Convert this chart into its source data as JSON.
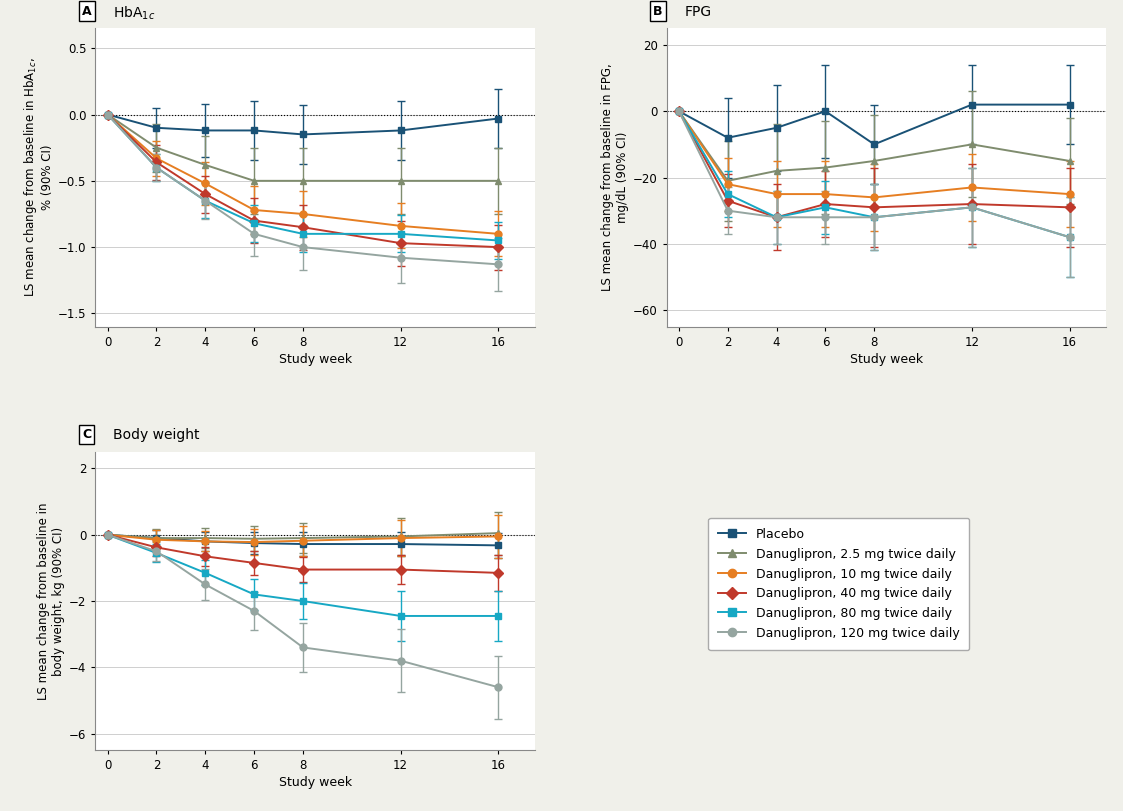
{
  "weeks": [
    0,
    2,
    4,
    6,
    8,
    12,
    16
  ],
  "hba1c": {
    "placebo": [
      0,
      -0.1,
      -0.12,
      -0.12,
      -0.15,
      -0.12,
      -0.03
    ],
    "d2p5": [
      0,
      -0.25,
      -0.38,
      -0.5,
      -0.5,
      -0.5,
      -0.5
    ],
    "d10": [
      0,
      -0.33,
      -0.52,
      -0.72,
      -0.75,
      -0.84,
      -0.9
    ],
    "d40": [
      0,
      -0.36,
      -0.6,
      -0.8,
      -0.85,
      -0.97,
      -1.0
    ],
    "d80": [
      0,
      -0.4,
      -0.65,
      -0.82,
      -0.9,
      -0.9,
      -0.95
    ],
    "d120": [
      0,
      -0.4,
      -0.65,
      -0.9,
      -1.0,
      -1.08,
      -1.13
    ]
  },
  "hba1c_err": {
    "placebo": [
      0,
      0.15,
      0.2,
      0.22,
      0.22,
      0.22,
      0.22
    ],
    "d2p5": [
      0,
      0.18,
      0.22,
      0.25,
      0.25,
      0.25,
      0.25
    ],
    "d10": [
      0,
      0.13,
      0.16,
      0.18,
      0.17,
      0.17,
      0.17
    ],
    "d40": [
      0,
      0.13,
      0.14,
      0.17,
      0.17,
      0.17,
      0.17
    ],
    "d80": [
      0,
      0.1,
      0.13,
      0.14,
      0.14,
      0.14,
      0.14
    ],
    "d120": [
      0,
      0.1,
      0.14,
      0.17,
      0.17,
      0.19,
      0.2
    ]
  },
  "fpg": {
    "placebo": [
      0,
      -8,
      -5,
      0,
      -10,
      2,
      2
    ],
    "d2p5": [
      0,
      -21,
      -18,
      -17,
      -15,
      -10,
      -15
    ],
    "d10": [
      0,
      -22,
      -25,
      -25,
      -26,
      -23,
      -25
    ],
    "d40": [
      0,
      -27,
      -32,
      -28,
      -29,
      -28,
      -29
    ],
    "d80": [
      0,
      -25,
      -32,
      -29,
      -32,
      -29,
      -38
    ],
    "d120": [
      0,
      -30,
      -32,
      -32,
      -32,
      -29,
      -38
    ]
  },
  "fpg_err": {
    "placebo": [
      0,
      12,
      13,
      14,
      12,
      12,
      12
    ],
    "d2p5": [
      0,
      12,
      14,
      14,
      14,
      16,
      13
    ],
    "d10": [
      0,
      8,
      10,
      10,
      10,
      10,
      10
    ],
    "d40": [
      0,
      8,
      10,
      10,
      12,
      12,
      12
    ],
    "d80": [
      0,
      7,
      8,
      8,
      10,
      12,
      12
    ],
    "d120": [
      0,
      7,
      8,
      8,
      10,
      12,
      12
    ]
  },
  "bw": {
    "placebo": [
      0,
      -0.1,
      -0.2,
      -0.25,
      -0.28,
      -0.28,
      -0.32
    ],
    "d2p5": [
      0,
      -0.1,
      -0.1,
      -0.12,
      -0.1,
      -0.05,
      0.05
    ],
    "d10": [
      0,
      -0.15,
      -0.2,
      -0.22,
      -0.18,
      -0.1,
      -0.05
    ],
    "d40": [
      0,
      -0.38,
      -0.65,
      -0.85,
      -1.05,
      -1.05,
      -1.15
    ],
    "d80": [
      0,
      -0.55,
      -1.15,
      -1.8,
      -2.0,
      -2.45,
      -2.45
    ],
    "d120": [
      0,
      -0.5,
      -1.5,
      -2.3,
      -3.4,
      -3.8,
      -4.6
    ]
  },
  "bw_err": {
    "placebo": [
      0,
      0.25,
      0.28,
      0.32,
      0.35,
      0.35,
      0.38
    ],
    "d2p5": [
      0,
      0.28,
      0.3,
      0.38,
      0.45,
      0.55,
      0.65
    ],
    "d10": [
      0,
      0.28,
      0.3,
      0.38,
      0.45,
      0.55,
      0.65
    ],
    "d40": [
      0,
      0.25,
      0.28,
      0.35,
      0.38,
      0.45,
      0.55
    ],
    "d80": [
      0,
      0.28,
      0.38,
      0.48,
      0.55,
      0.75,
      0.75
    ],
    "d120": [
      0,
      0.28,
      0.48,
      0.58,
      0.75,
      0.95,
      0.95
    ]
  },
  "colors": {
    "placebo": "#1a5276",
    "d2p5": "#7f8c6e",
    "d10": "#e67e22",
    "d40": "#c0392b",
    "d80": "#17a8c4",
    "d120": "#95a5a0"
  },
  "markers": {
    "placebo": "s",
    "d2p5": "^",
    "d10": "o",
    "d40": "D",
    "d80": "s",
    "d120": "o"
  },
  "legend_labels": {
    "placebo": "Placebo",
    "d2p5": "Danuglipron, 2.5 mg twice daily",
    "d10": "Danuglipron, 10 mg twice daily",
    "d40": "Danuglipron, 40 mg twice daily",
    "d80": "Danuglipron, 80 mg twice daily",
    "d120": "Danuglipron, 120 mg twice daily"
  },
  "xlim": [
    -0.5,
    17.5
  ],
  "xticks": [
    0,
    2,
    4,
    6,
    8,
    12,
    16
  ],
  "ylim_A": [
    -1.6,
    0.65
  ],
  "yticks_A": [
    -1.5,
    -1.0,
    -0.5,
    0.0,
    0.5
  ],
  "ylim_B": [
    -65,
    25
  ],
  "yticks_B": [
    -60,
    -40,
    -20,
    0,
    20
  ],
  "ylim_C": [
    -6.5,
    2.5
  ],
  "yticks_C": [
    -6,
    -4,
    -2,
    0,
    2
  ],
  "bg_color": "#f0f0ea",
  "plot_bg": "#ffffff",
  "grid_color": "#c8c8c8"
}
